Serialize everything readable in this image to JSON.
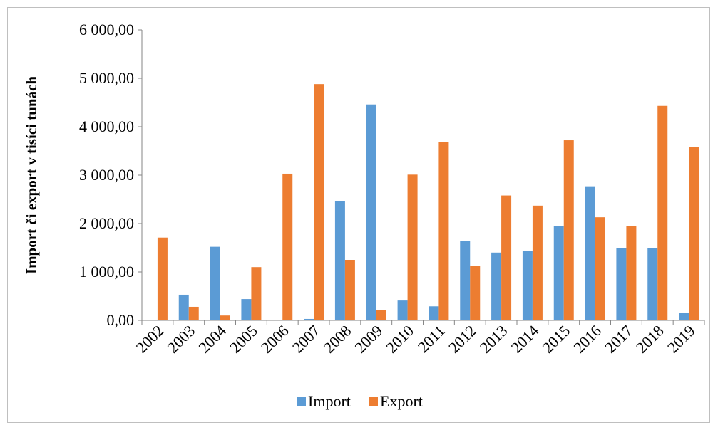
{
  "chart_data": {
    "type": "bar",
    "title": "",
    "xlabel": "",
    "ylabel": "Import či export v tisíci tunách",
    "ylim": [
      0,
      6000
    ],
    "y_ticks": [
      0,
      1000,
      2000,
      3000,
      4000,
      5000,
      6000
    ],
    "y_tick_labels": [
      "0,00",
      "1 000,00",
      "2 000,00",
      "3 000,00",
      "4 000,00",
      "5 000,00",
      "6 000,00"
    ],
    "categories": [
      "2002",
      "2003",
      "2004",
      "2005",
      "2006",
      "2007",
      "2008",
      "2009",
      "2010",
      "2011",
      "2012",
      "2013",
      "2014",
      "2015",
      "2016",
      "2017",
      "2018",
      "2019"
    ],
    "series": [
      {
        "name": "Import",
        "color": "#5B9BD5",
        "values": [
          0,
          530,
          1520,
          440,
          0,
          30,
          2460,
          4460,
          410,
          290,
          1640,
          1400,
          1430,
          1950,
          2770,
          1500,
          1500,
          160
        ]
      },
      {
        "name": "Export",
        "color": "#ED7D31",
        "values": [
          1710,
          280,
          100,
          1100,
          3030,
          4880,
          1250,
          210,
          3010,
          3680,
          1130,
          2580,
          2370,
          3720,
          2130,
          1950,
          4430,
          3580
        ]
      }
    ],
    "grid": false,
    "legend_position": "bottom"
  }
}
